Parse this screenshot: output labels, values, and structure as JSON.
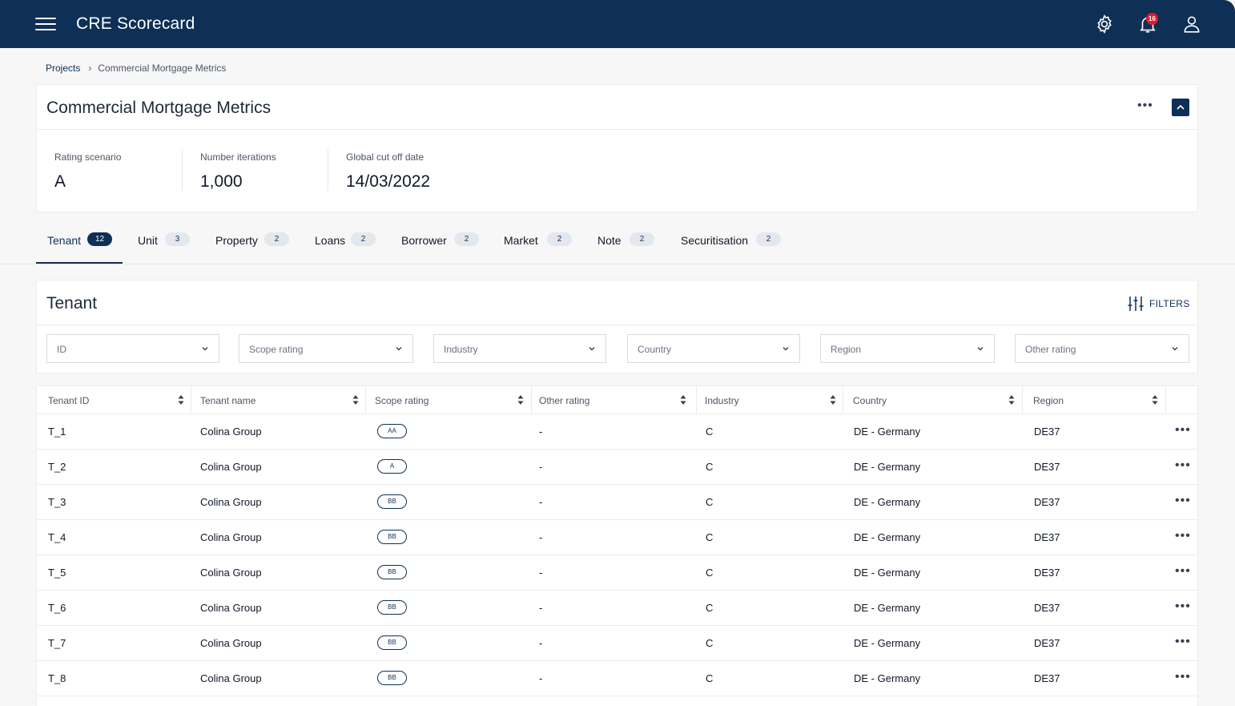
{
  "app": {
    "title": "CRE Scorecard",
    "notifications_count": "16"
  },
  "breadcrumb": {
    "root": "Projects",
    "current": "Commercial Mortgage Metrics"
  },
  "project": {
    "title": "Commercial Mortgage Metrics",
    "more_label": "•••",
    "stats": [
      {
        "label": "Rating scenario",
        "value": "A"
      },
      {
        "label": "Number iterations",
        "value": "1,000"
      },
      {
        "label": "Global cut off date",
        "value": "14/03/2022"
      }
    ]
  },
  "tabs": [
    {
      "label": "Tenant",
      "count": "12",
      "active": true
    },
    {
      "label": "Unit",
      "count": "3"
    },
    {
      "label": "Property",
      "count": "2"
    },
    {
      "label": "Loans",
      "count": "2"
    },
    {
      "label": "Borrower",
      "count": "2"
    },
    {
      "label": "Market",
      "count": "2"
    },
    {
      "label": "Note",
      "count": "2"
    },
    {
      "label": "Securitisation",
      "count": "2"
    }
  ],
  "section": {
    "title": "Tenant",
    "filters_label": "FILTERS",
    "filter_selects": [
      "ID",
      "Scope rating",
      "Industry",
      "Country",
      "Region",
      "Other rating"
    ]
  },
  "table": {
    "columns": [
      "Tenant ID",
      "Tenant name",
      "Scope rating",
      "Other rating",
      "Industry",
      "Country",
      "Region"
    ],
    "row_more_label": "•••",
    "rows": [
      {
        "id": "T_1",
        "name": "Colina Group",
        "scope": "AA",
        "other": "-",
        "industry": "C",
        "country": "DE - Germany",
        "region": "DE37"
      },
      {
        "id": "T_2",
        "name": "Colina Group",
        "scope": "A",
        "other": "-",
        "industry": "C",
        "country": "DE - Germany",
        "region": "DE37"
      },
      {
        "id": "T_3",
        "name": "Colina Group",
        "scope": "BB",
        "other": "-",
        "industry": "C",
        "country": "DE - Germany",
        "region": "DE37"
      },
      {
        "id": "T_4",
        "name": "Colina Group",
        "scope": "BB",
        "other": "-",
        "industry": "C",
        "country": "DE - Germany",
        "region": "DE37"
      },
      {
        "id": "T_5",
        "name": "Colina Group",
        "scope": "BB",
        "other": "-",
        "industry": "C",
        "country": "DE - Germany",
        "region": "DE37"
      },
      {
        "id": "T_6",
        "name": "Colina Group",
        "scope": "BB",
        "other": "-",
        "industry": "C",
        "country": "DE - Germany",
        "region": "DE37"
      },
      {
        "id": "T_7",
        "name": "Colina Group",
        "scope": "BB",
        "other": "-",
        "industry": "C",
        "country": "DE - Germany",
        "region": "DE37"
      },
      {
        "id": "T_8",
        "name": "Colina Group",
        "scope": "BB",
        "other": "-",
        "industry": "C",
        "country": "DE - Germany",
        "region": "DE37"
      }
    ]
  },
  "colors": {
    "brand": "#0e2f56",
    "alert": "#e11d2a"
  }
}
